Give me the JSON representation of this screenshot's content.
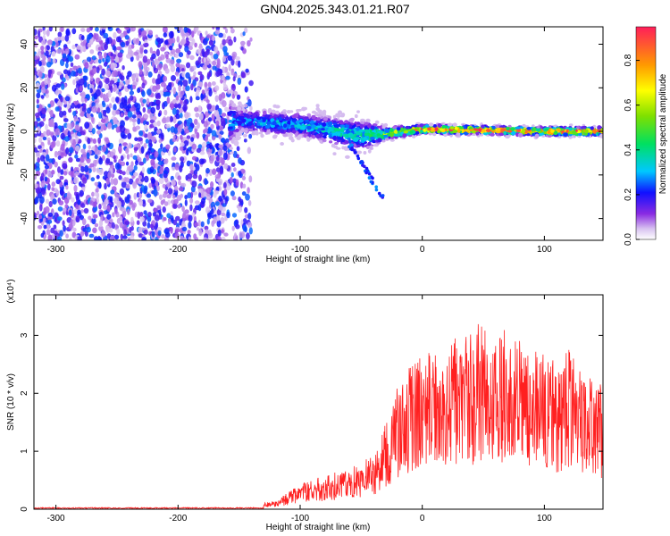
{
  "figure_title": "GN04.2025.343.01.21.R07",
  "colors": {
    "snr_line": "#ff2020",
    "background": "#ffffff"
  },
  "chart_data": [
    {
      "type": "heatmap",
      "title": "GN04.2025.343.01.21.R07",
      "xlabel": "Height of straight line (km)",
      "ylabel": "Frequency (Hz)",
      "xlim": [
        -318,
        148
      ],
      "ylim": [
        -50,
        48
      ],
      "xticks": [
        -300,
        -200,
        -100,
        0,
        100
      ],
      "yticks": [
        -40,
        -20,
        0,
        20,
        40
      ],
      "colorbar": {
        "label": "Normalized spectral amplitude",
        "range": [
          0,
          0.95
        ],
        "ticks": [
          0.0,
          0.2,
          0.4,
          0.6,
          0.8
        ]
      },
      "description_points": [
        {
          "height": -300,
          "freq_center": 0,
          "spread": 48,
          "amp": 0.15
        },
        {
          "height": -200,
          "freq_center": 0,
          "spread": 48,
          "amp": 0.15
        },
        {
          "height": -150,
          "freq_center": 5,
          "spread": 6,
          "amp": 0.3
        },
        {
          "height": -100,
          "freq_center": 3,
          "spread": 6,
          "amp": 0.35
        },
        {
          "height": -50,
          "freq_center": -2,
          "spread": 8,
          "amp": 0.4
        },
        {
          "height": -30,
          "freq_center": -1,
          "spread": 3,
          "amp": 0.6
        },
        {
          "height": 0,
          "freq_center": 1,
          "spread": 2,
          "amp": 0.9
        },
        {
          "height": 100,
          "freq_center": 0,
          "spread": 2,
          "amp": 0.9
        },
        {
          "height": 148,
          "freq_center": 0,
          "spread": 2,
          "amp": 0.9
        }
      ]
    },
    {
      "type": "line",
      "title": "",
      "xlabel": "Height of straight line (km)",
      "ylabel": "SNR (10 * v/v)",
      "y_multiplier": "(x10⁴)",
      "xlim": [
        -318,
        148
      ],
      "ylim": [
        0,
        3.7
      ],
      "xticks": [
        -300,
        -200,
        -100,
        0,
        100
      ],
      "yticks": [
        0,
        1,
        2,
        3
      ],
      "series": [
        {
          "name": "SNR",
          "x": [
            -318,
            -200,
            -140,
            -120,
            -110,
            -100,
            -90,
            -80,
            -70,
            -60,
            -50,
            -40,
            -35,
            -30,
            -25,
            -20,
            -10,
            0,
            10,
            20,
            30,
            40,
            50,
            60,
            70,
            80,
            90,
            100,
            110,
            120,
            130,
            140,
            148
          ],
          "y": [
            0.02,
            0.02,
            0.05,
            0.1,
            0.2,
            0.3,
            0.35,
            0.4,
            0.45,
            0.5,
            0.6,
            0.65,
            0.8,
            1.1,
            1.3,
            1.5,
            1.7,
            1.9,
            1.95,
            2.0,
            2.2,
            2.1,
            2.3,
            2.0,
            2.2,
            2.0,
            1.9,
            1.9,
            1.8,
            1.9,
            1.7,
            1.6,
            1.5
          ]
        }
      ]
    }
  ]
}
